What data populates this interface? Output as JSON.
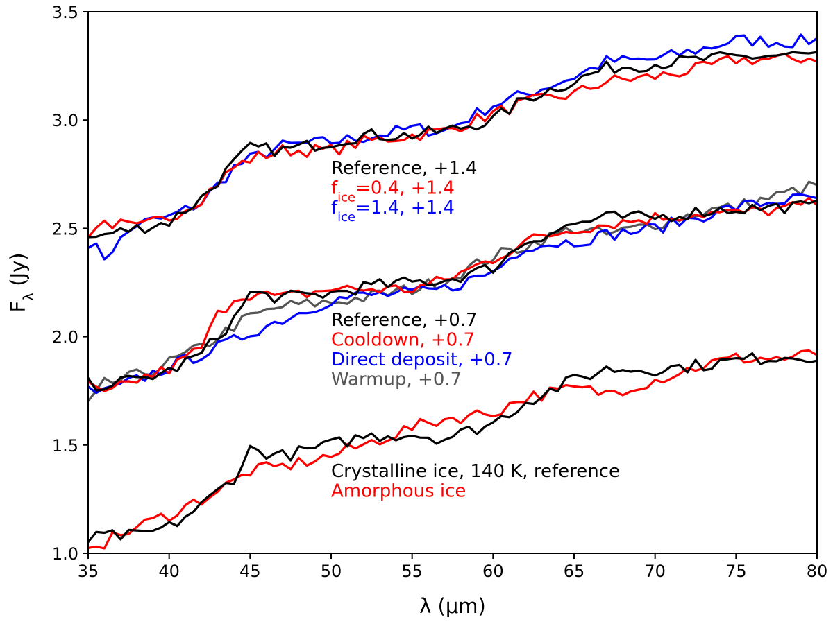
{
  "chart_data": {
    "type": "line",
    "title": "",
    "xlabel": "λ (μm)",
    "ylabel_main": "F",
    "ylabel_sub": "λ",
    "ylabel_unit": " (Jy)",
    "xlim": [
      35,
      80
    ],
    "ylim": [
      1.0,
      3.5
    ],
    "xticks": [
      "35",
      "40",
      "45",
      "50",
      "55",
      "60",
      "65",
      "70",
      "75",
      "80"
    ],
    "yticks": [
      "1.0",
      "1.5",
      "2.0",
      "2.5",
      "3.0",
      "3.5"
    ],
    "grid": false,
    "colors": {
      "black": "#000000",
      "red": "#ff0000",
      "blue": "#0000ff",
      "gray": "#555555"
    },
    "groups": [
      {
        "id": "top",
        "annotations": [
          {
            "text": "Reference, +1.4",
            "color": "#000000"
          },
          {
            "text_prefix": "f",
            "text_sub": "ice",
            "text_suffix": "=0.4, +1.4",
            "color": "#ff0000"
          },
          {
            "text_prefix": "f",
            "text_sub": "ice",
            "text_suffix": "=1.4, +1.4",
            "color": "#0000ff"
          }
        ],
        "series": [
          {
            "color": "#0000ff",
            "anchors": [
              [
                35,
                2.44
              ],
              [
                36,
                2.37
              ],
              [
                38,
                2.52
              ],
              [
                40,
                2.55
              ],
              [
                42,
                2.62
              ],
              [
                44,
                2.78
              ],
              [
                45,
                2.82
              ],
              [
                47,
                2.88
              ],
              [
                50,
                2.9
              ],
              [
                52,
                2.92
              ],
              [
                55,
                2.96
              ],
              [
                57,
                2.95
              ],
              [
                60,
                3.07
              ],
              [
                62,
                3.12
              ],
              [
                65,
                3.2
              ],
              [
                67,
                3.27
              ],
              [
                70,
                3.28
              ],
              [
                73,
                3.33
              ],
              [
                75,
                3.37
              ],
              [
                78,
                3.36
              ],
              [
                80,
                3.37
              ]
            ]
          },
          {
            "color": "#ff0000",
            "anchors": [
              [
                35,
                2.48
              ],
              [
                36,
                2.53
              ],
              [
                38,
                2.5
              ],
              [
                40,
                2.55
              ],
              [
                42,
                2.64
              ],
              [
                44,
                2.78
              ],
              [
                45,
                2.82
              ],
              [
                47,
                2.86
              ],
              [
                50,
                2.86
              ],
              [
                52,
                2.9
              ],
              [
                55,
                2.93
              ],
              [
                57,
                2.95
              ],
              [
                60,
                3.03
              ],
              [
                62,
                3.08
              ],
              [
                65,
                3.12
              ],
              [
                67,
                3.18
              ],
              [
                70,
                3.2
              ],
              [
                73,
                3.24
              ],
              [
                75,
                3.28
              ],
              [
                78,
                3.28
              ],
              [
                80,
                3.29
              ]
            ]
          },
          {
            "color": "#000000",
            "anchors": [
              [
                35,
                2.45
              ],
              [
                36,
                2.47
              ],
              [
                38,
                2.5
              ],
              [
                40,
                2.53
              ],
              [
                42,
                2.64
              ],
              [
                44,
                2.8
              ],
              [
                45,
                2.87
              ],
              [
                47,
                2.86
              ],
              [
                50,
                2.9
              ],
              [
                52,
                2.93
              ],
              [
                55,
                2.93
              ],
              [
                57,
                2.95
              ],
              [
                60,
                3.0
              ],
              [
                62,
                3.1
              ],
              [
                65,
                3.18
              ],
              [
                67,
                3.24
              ],
              [
                70,
                3.26
              ],
              [
                73,
                3.28
              ],
              [
                75,
                3.29
              ],
              [
                78,
                3.3
              ],
              [
                80,
                3.3
              ]
            ]
          }
        ]
      },
      {
        "id": "middle",
        "annotations": [
          {
            "text": "Reference, +0.7",
            "color": "#000000"
          },
          {
            "text": "Cooldown, +0.7",
            "color": "#ff0000"
          },
          {
            "text": "Direct deposit, +0.7",
            "color": "#0000ff"
          },
          {
            "text": "Warmup, +0.7",
            "color": "#555555"
          }
        ],
        "series": [
          {
            "color": "#555555",
            "anchors": [
              [
                35,
                1.68
              ],
              [
                36,
                1.78
              ],
              [
                38,
                1.82
              ],
              [
                40,
                1.88
              ],
              [
                42,
                1.95
              ],
              [
                44,
                2.05
              ],
              [
                45,
                2.09
              ],
              [
                47,
                2.14
              ],
              [
                50,
                2.16
              ],
              [
                52,
                2.18
              ],
              [
                55,
                2.22
              ],
              [
                57,
                2.26
              ],
              [
                60,
                2.37
              ],
              [
                62,
                2.42
              ],
              [
                65,
                2.5
              ],
              [
                67,
                2.47
              ],
              [
                70,
                2.52
              ],
              [
                73,
                2.58
              ],
              [
                75,
                2.6
              ],
              [
                78,
                2.66
              ],
              [
                80,
                2.7
              ]
            ]
          },
          {
            "color": "#0000ff",
            "anchors": [
              [
                35,
                1.75
              ],
              [
                36,
                1.74
              ],
              [
                38,
                1.8
              ],
              [
                40,
                1.86
              ],
              [
                42,
                1.92
              ],
              [
                44,
                1.98
              ],
              [
                45,
                2.02
              ],
              [
                47,
                2.08
              ],
              [
                50,
                2.17
              ],
              [
                52,
                2.19
              ],
              [
                55,
                2.2
              ],
              [
                57,
                2.22
              ],
              [
                60,
                2.3
              ],
              [
                62,
                2.42
              ],
              [
                65,
                2.44
              ],
              [
                67,
                2.47
              ],
              [
                70,
                2.5
              ],
              [
                73,
                2.56
              ],
              [
                75,
                2.6
              ],
              [
                78,
                2.63
              ],
              [
                80,
                2.64
              ]
            ]
          },
          {
            "color": "#ff0000",
            "anchors": [
              [
                35,
                1.77
              ],
              [
                36,
                1.73
              ],
              [
                38,
                1.8
              ],
              [
                40,
                1.85
              ],
              [
                42,
                1.95
              ],
              [
                43,
                2.1
              ],
              [
                44,
                2.18
              ],
              [
                45,
                2.2
              ],
              [
                47,
                2.18
              ],
              [
                50,
                2.22
              ],
              [
                52,
                2.22
              ],
              [
                55,
                2.22
              ],
              [
                57,
                2.26
              ],
              [
                60,
                2.36
              ],
              [
                62,
                2.44
              ],
              [
                65,
                2.5
              ],
              [
                67,
                2.52
              ],
              [
                70,
                2.55
              ],
              [
                73,
                2.57
              ],
              [
                75,
                2.57
              ],
              [
                78,
                2.59
              ],
              [
                80,
                2.62
              ]
            ]
          },
          {
            "color": "#000000",
            "anchors": [
              [
                35,
                1.78
              ],
              [
                36,
                1.78
              ],
              [
                38,
                1.8
              ],
              [
                40,
                1.84
              ],
              [
                42,
                1.92
              ],
              [
                44,
                2.08
              ],
              [
                45,
                2.2
              ],
              [
                47,
                2.18
              ],
              [
                50,
                2.2
              ],
              [
                52,
                2.23
              ],
              [
                55,
                2.25
              ],
              [
                57,
                2.26
              ],
              [
                60,
                2.32
              ],
              [
                62,
                2.44
              ],
              [
                65,
                2.52
              ],
              [
                67,
                2.55
              ],
              [
                70,
                2.55
              ],
              [
                73,
                2.58
              ],
              [
                75,
                2.59
              ],
              [
                78,
                2.6
              ],
              [
                80,
                2.6
              ]
            ]
          }
        ]
      },
      {
        "id": "bottom",
        "annotations": [
          {
            "text": "Crystalline ice, 140 K, reference",
            "color": "#000000"
          },
          {
            "text": "Amorphous ice",
            "color": "#ff0000"
          }
        ],
        "series": [
          {
            "color": "#ff0000",
            "anchors": [
              [
                35,
                1.05
              ],
              [
                36,
                1.05
              ],
              [
                38,
                1.12
              ],
              [
                40,
                1.18
              ],
              [
                42,
                1.25
              ],
              [
                44,
                1.33
              ],
              [
                45,
                1.38
              ],
              [
                47,
                1.4
              ],
              [
                50,
                1.45
              ],
              [
                52,
                1.5
              ],
              [
                55,
                1.58
              ],
              [
                57,
                1.62
              ],
              [
                60,
                1.65
              ],
              [
                62,
                1.72
              ],
              [
                65,
                1.76
              ],
              [
                67,
                1.74
              ],
              [
                70,
                1.8
              ],
              [
                73,
                1.87
              ],
              [
                75,
                1.9
              ],
              [
                78,
                1.9
              ],
              [
                80,
                1.92
              ]
            ]
          },
          {
            "color": "#000000",
            "anchors": [
              [
                35,
                1.06
              ],
              [
                36,
                1.08
              ],
              [
                38,
                1.08
              ],
              [
                40,
                1.12
              ],
              [
                42,
                1.22
              ],
              [
                44,
                1.35
              ],
              [
                45,
                1.48
              ],
              [
                47,
                1.45
              ],
              [
                50,
                1.5
              ],
              [
                52,
                1.54
              ],
              [
                55,
                1.55
              ],
              [
                57,
                1.53
              ],
              [
                60,
                1.6
              ],
              [
                62,
                1.7
              ],
              [
                65,
                1.8
              ],
              [
                67,
                1.85
              ],
              [
                70,
                1.85
              ],
              [
                73,
                1.87
              ],
              [
                75,
                1.89
              ],
              [
                78,
                1.91
              ],
              [
                80,
                1.91
              ]
            ]
          }
        ]
      }
    ]
  }
}
